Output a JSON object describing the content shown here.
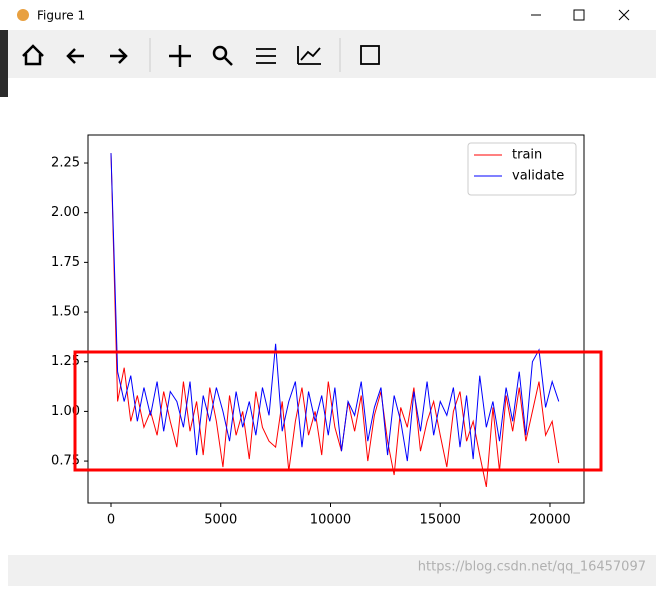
{
  "window": {
    "title": "Figure 1"
  },
  "chart_data": {
    "type": "line",
    "x": [
      0,
      300,
      600,
      900,
      1200,
      1500,
      1800,
      2100,
      2400,
      2700,
      3000,
      3300,
      3600,
      3900,
      4200,
      4500,
      4800,
      5100,
      5400,
      5700,
      6000,
      6300,
      6600,
      6900,
      7200,
      7500,
      7800,
      8100,
      8400,
      8700,
      9000,
      9300,
      9600,
      9900,
      10200,
      10500,
      10800,
      11100,
      11400,
      11700,
      12000,
      12300,
      12600,
      12900,
      13200,
      13500,
      13800,
      14100,
      14400,
      14700,
      15000,
      15300,
      15600,
      15900,
      16200,
      16500,
      16800,
      17100,
      17400,
      17700,
      18000,
      18300,
      18600,
      18900,
      19200,
      19500,
      19800,
      20100,
      20400
    ],
    "series": [
      {
        "name": "train",
        "color": "#ff0000",
        "values": [
          2.3,
          1.05,
          1.22,
          0.95,
          1.08,
          0.92,
          1.0,
          0.88,
          1.1,
          0.95,
          0.82,
          1.15,
          0.9,
          1.05,
          0.78,
          1.12,
          0.95,
          0.72,
          1.08,
          0.88,
          1.0,
          0.76,
          1.1,
          0.92,
          0.85,
          0.82,
          1.05,
          0.7,
          0.95,
          1.12,
          0.88,
          1.0,
          0.78,
          1.15,
          0.92,
          0.8,
          1.05,
          0.9,
          1.08,
          0.75,
          0.98,
          1.1,
          0.85,
          0.68,
          1.02,
          0.92,
          1.12,
          0.8,
          0.95,
          1.05,
          0.88,
          0.72,
          1.0,
          1.1,
          0.85,
          0.95,
          0.78,
          0.62,
          1.02,
          0.7,
          1.08,
          0.9,
          1.12,
          0.85,
          1.0,
          1.15,
          0.88,
          0.95,
          0.74
        ]
      },
      {
        "name": "validate",
        "color": "#0000ff",
        "values": [
          2.3,
          1.2,
          1.05,
          1.18,
          0.95,
          1.12,
          0.98,
          1.15,
          0.9,
          1.1,
          1.05,
          0.92,
          1.15,
          0.78,
          1.08,
          0.95,
          1.12,
          1.0,
          0.85,
          1.1,
          0.92,
          1.05,
          0.88,
          1.12,
          0.98,
          1.34,
          0.9,
          1.05,
          1.15,
          0.82,
          1.1,
          0.95,
          1.08,
          0.88,
          1.12,
          0.8,
          1.05,
          0.98,
          1.15,
          0.85,
          1.02,
          1.12,
          0.78,
          1.08,
          0.95,
          0.75,
          1.1,
          0.9,
          1.15,
          0.88,
          1.05,
          0.98,
          1.12,
          0.82,
          1.08,
          0.76,
          1.18,
          0.92,
          1.05,
          0.85,
          1.12,
          0.95,
          1.2,
          0.88,
          1.25,
          1.31,
          1.02,
          1.15,
          1.05
        ]
      }
    ],
    "xlim": [
      -1048,
      21550
    ],
    "ylim": [
      0.539,
      2.391
    ],
    "xticks": [
      0,
      5000,
      10000,
      15000,
      20000
    ],
    "yticks": [
      0.75,
      {
        "value": 1,
        "label": "1.00"
      },
      1.25,
      {
        "value": 1.5,
        "label": "1.50"
      },
      1.75,
      {
        "value": 2,
        "label": "2.00"
      },
      2.25
    ],
    "legend": "upper right"
  },
  "watermark": "https://blog.csdn.net/qq_16457097"
}
